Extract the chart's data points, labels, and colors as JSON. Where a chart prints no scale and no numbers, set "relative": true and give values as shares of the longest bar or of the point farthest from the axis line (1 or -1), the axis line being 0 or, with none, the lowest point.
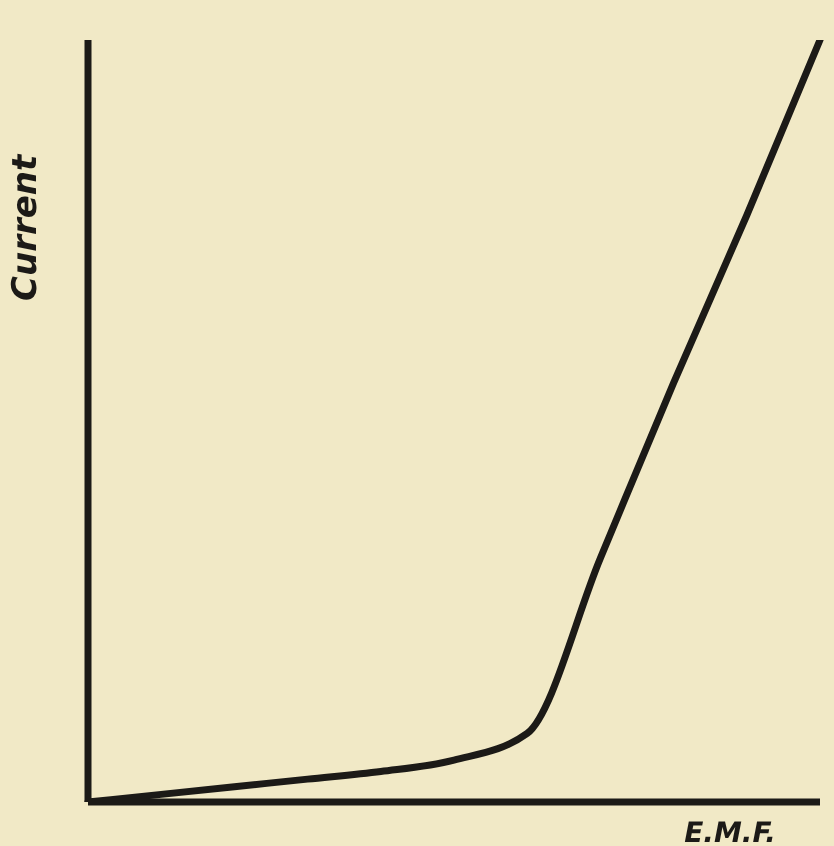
{
  "chart_data": {
    "type": "line",
    "xlabel": "E.M.F.",
    "ylabel": "Current",
    "relative": true,
    "categories": [
      null,
      null,
      null,
      null,
      null,
      null,
      null,
      null,
      null,
      null,
      null
    ],
    "series": [
      {
        "color": "#1c1a17",
        "values": [
          0,
          0.01,
          0.02,
          0.03,
          0.04,
          0.055,
          0.09,
          0.32,
          0.55,
          0.77,
          1
        ]
      }
    ],
    "grid": false,
    "marker": "none",
    "line_style": "solid"
  }
}
